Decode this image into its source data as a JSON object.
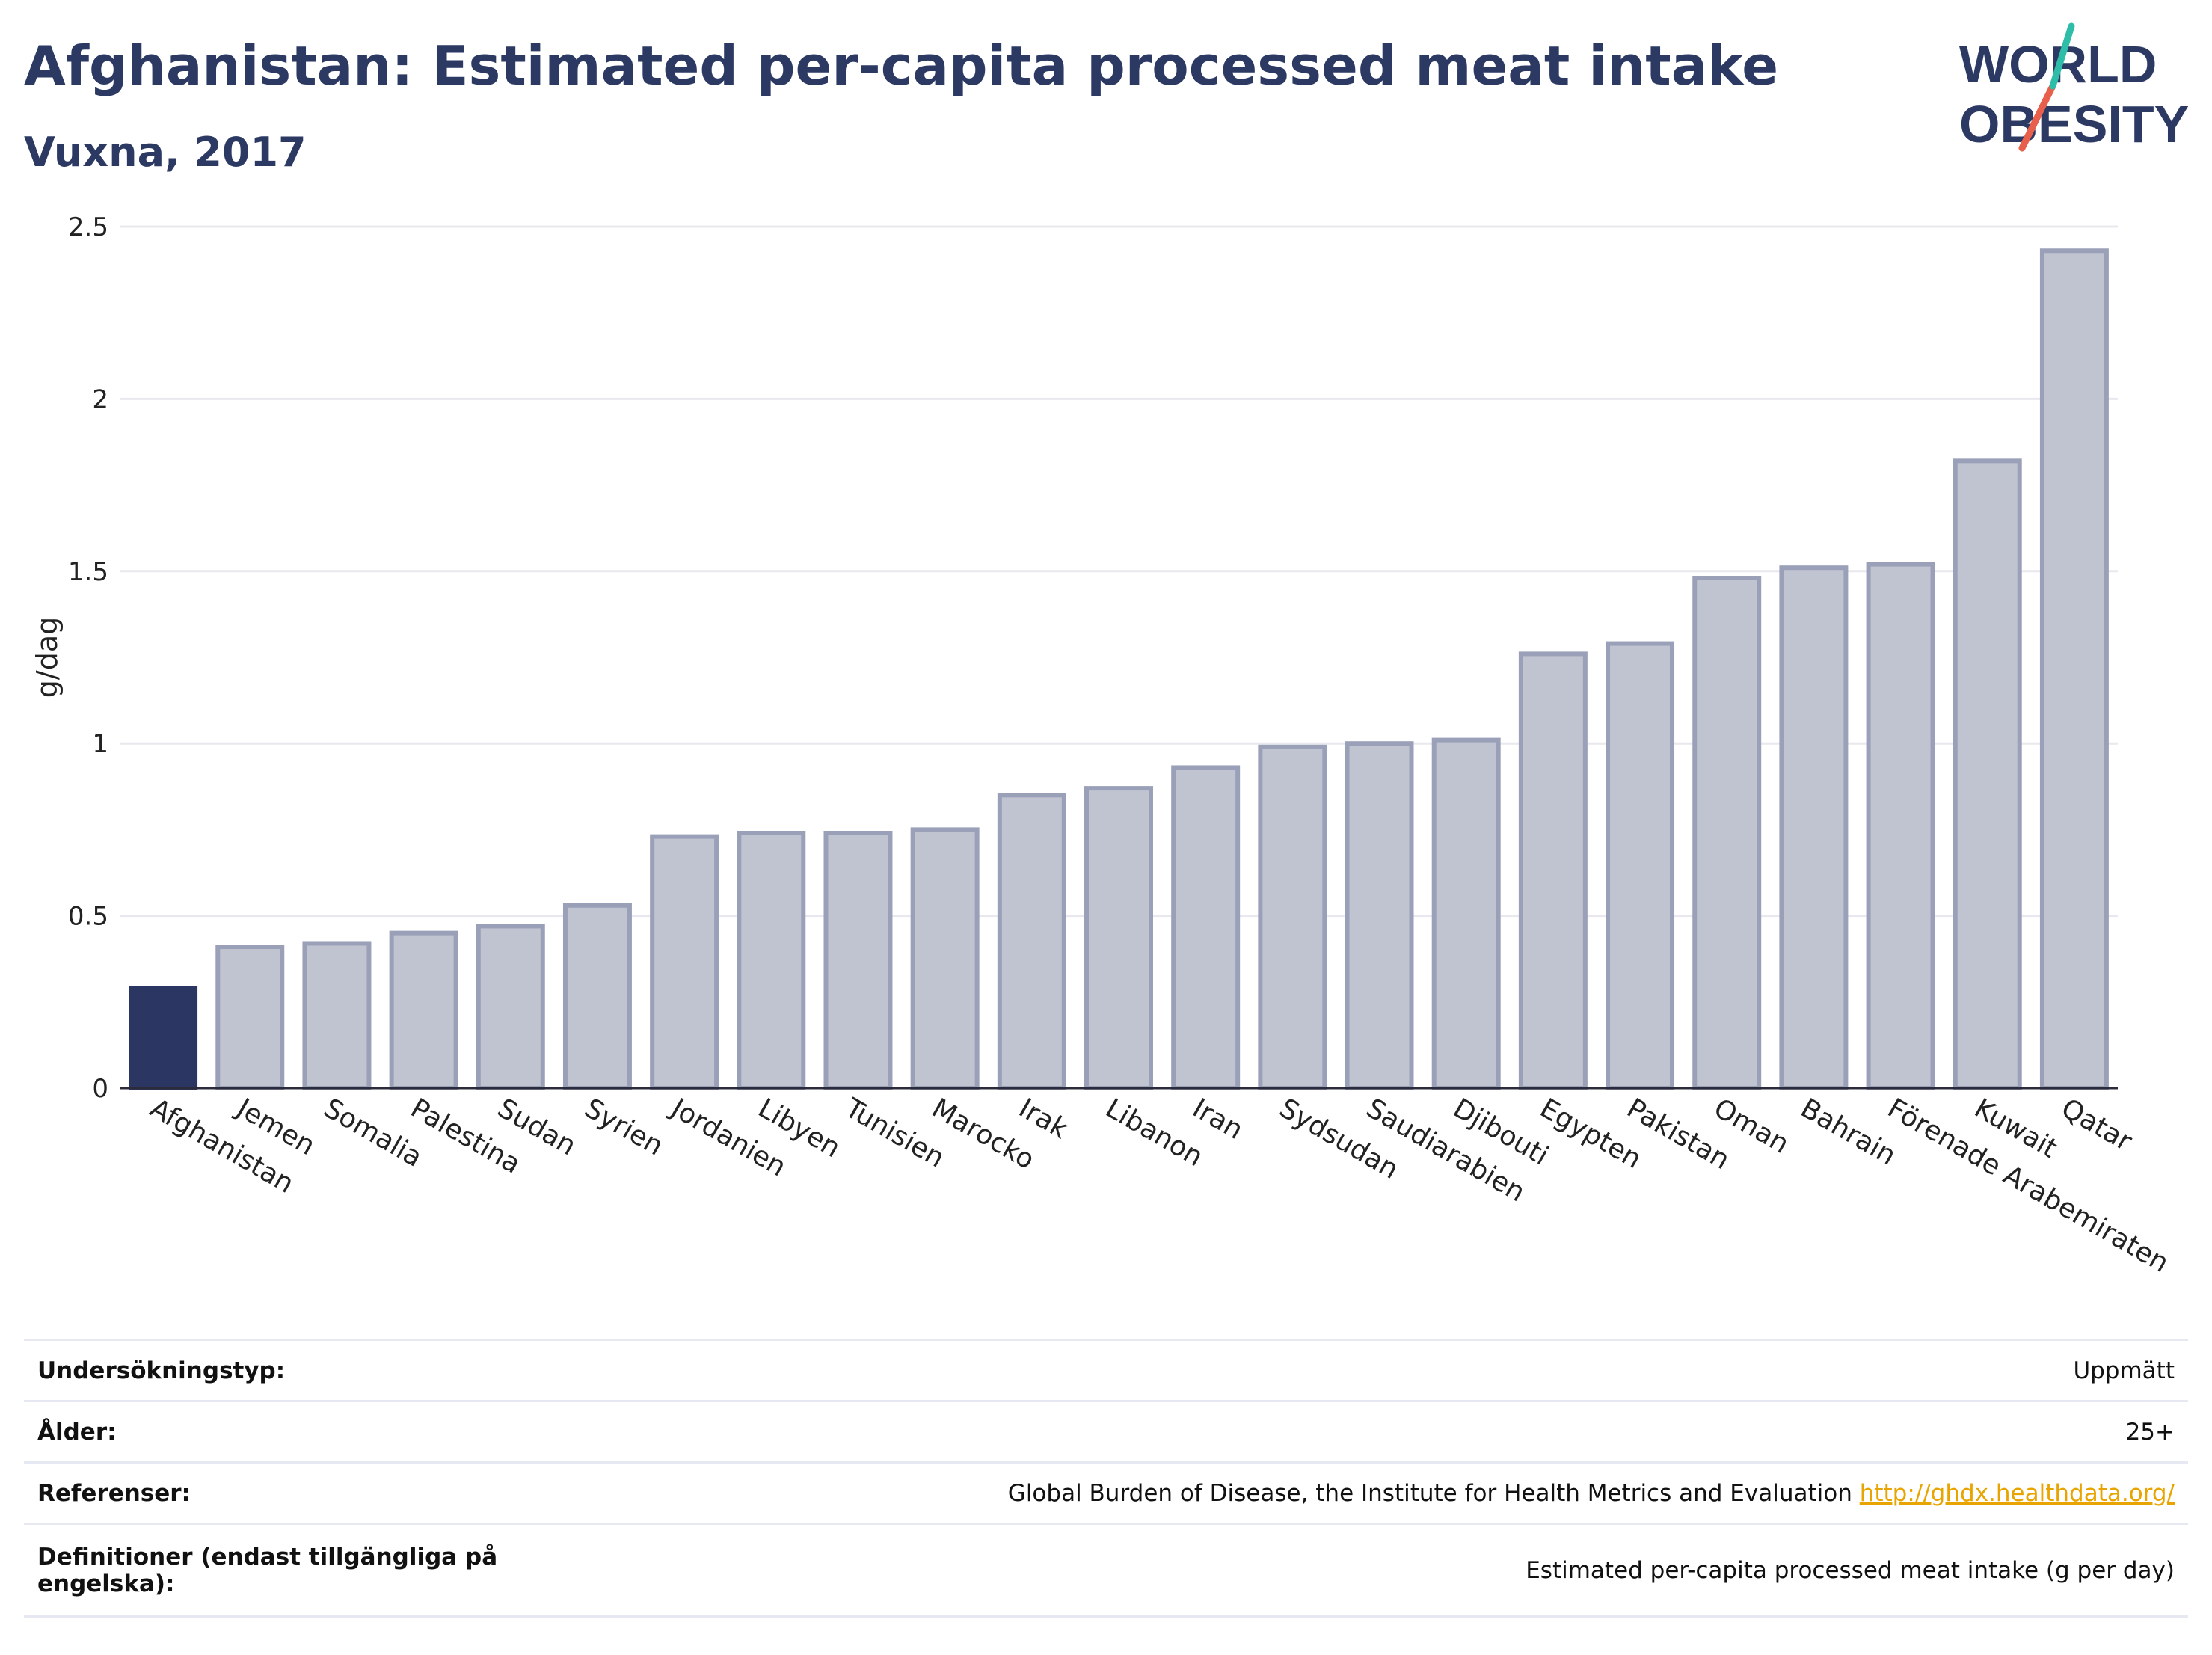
{
  "header": {
    "title": "Afghanistan: Estimated per-capita processed meat intake",
    "subtitle": "Vuxna, 2017"
  },
  "logo": {
    "line1": "WORLD",
    "line2": "OBESITY"
  },
  "colors": {
    "title": "#2b3963",
    "highlight_bar": "#2b3762",
    "bar_fill": "#c0c4d1",
    "bar_stroke": "#9aa0b8",
    "grid": "#e8e8ee",
    "axis": "#2b2b3b",
    "link": "#e8a400",
    "logo_teal": "#2dbda8",
    "logo_coral": "#e8604c"
  },
  "chart_data": {
    "type": "bar",
    "ylabel": "g/dag",
    "ylim": [
      0,
      2.5
    ],
    "yticks": [
      0,
      0.5,
      1,
      1.5,
      2,
      2.5
    ],
    "ytick_labels": [
      "0",
      "0.5",
      "1",
      "1.5",
      "2",
      "2.5"
    ],
    "grid": true,
    "highlight": "Afghanistan",
    "categories": [
      "Afghanistan",
      "Jemen",
      "Somalia",
      "Palestina",
      "Sudan",
      "Syrien",
      "Jordanien",
      "Libyen",
      "Tunisien",
      "Marocko",
      "Irak",
      "Libanon",
      "Iran",
      "Sydsudan",
      "Saudiarabien",
      "Djibouti",
      "Egypten",
      "Pakistan",
      "Oman",
      "Bahrain",
      "Förenade Arabemiraten",
      "Kuwait",
      "Qatar"
    ],
    "values": [
      0.29,
      0.41,
      0.42,
      0.45,
      0.47,
      0.53,
      0.73,
      0.74,
      0.74,
      0.75,
      0.85,
      0.87,
      0.93,
      0.99,
      1.0,
      1.01,
      1.26,
      1.29,
      1.48,
      1.51,
      1.52,
      1.82,
      2.43
    ]
  },
  "info": [
    {
      "label": "Undersökningstyp:",
      "value": "Uppmätt"
    },
    {
      "label": "Ålder:",
      "value": "25+"
    },
    {
      "label": "Referenser:",
      "value": "Global Burden of Disease, the Institute for Health Metrics and Evaluation",
      "link": "http://ghdx.healthdata.org/"
    },
    {
      "label": "Definitioner (endast tillgängliga på engelska):",
      "value": "Estimated per-capita processed meat intake (g per day)"
    }
  ]
}
